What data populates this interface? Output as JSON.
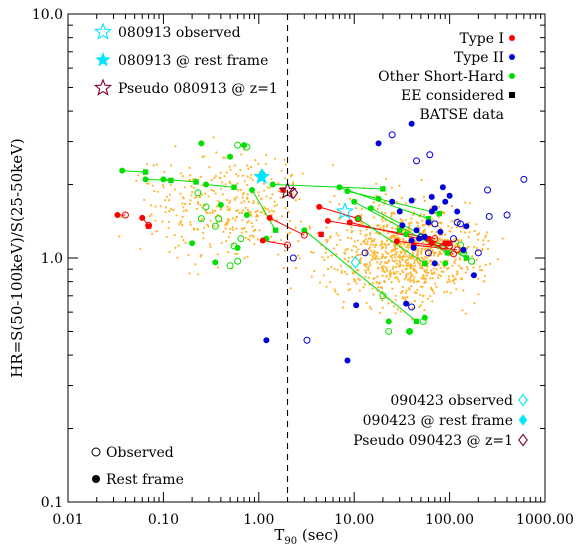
{
  "chart_data": {
    "type": "scatter",
    "xlabel_main": "T",
    "xlabel_sub": "90",
    "xlabel_unit": " (sec)",
    "ylabel": "HR=S(50-100keV)/S(25-50keV)",
    "xscale": "log",
    "yscale": "log",
    "xlim": [
      0.01,
      1000
    ],
    "ylim": [
      0.1,
      10
    ],
    "x_ticks": [
      {
        "value": 0.01,
        "label": "0.01"
      },
      {
        "value": 0.1,
        "label": "0.10"
      },
      {
        "value": 1,
        "label": "1.00"
      },
      {
        "value": 10,
        "label": "10.00"
      },
      {
        "value": 100,
        "label": "100.00"
      },
      {
        "value": 1000,
        "label": "1000.00"
      }
    ],
    "y_ticks": [
      {
        "value": 0.1,
        "label": "0.1"
      },
      {
        "value": 1,
        "label": "1.0"
      },
      {
        "value": 10,
        "label": "10.0"
      }
    ],
    "vline": {
      "x": 2,
      "style": "dashed"
    },
    "colors": {
      "type1": "#ff0000",
      "type2": "#0000dd",
      "other": "#00e000",
      "ee": "#000000",
      "batse": "#ffb62e",
      "obs_star": "#00e6ff",
      "pseudo": "#800030"
    },
    "legend_left": [
      {
        "label": "080913 observed",
        "marker": "open-star",
        "color": "#00e6ff"
      },
      {
        "label": "080913 @ rest frame",
        "marker": "filled-star",
        "color": "#00e6ff"
      },
      {
        "label": "Pseudo 080913 @ z=1",
        "marker": "open-star",
        "color": "#800030"
      }
    ],
    "legend_right": [
      {
        "label": "Type I",
        "marker": "filled-circle",
        "color": "#ff0000"
      },
      {
        "label": "Type II",
        "marker": "filled-circle",
        "color": "#0000dd"
      },
      {
        "label": "Other Short-Hard",
        "marker": "filled-circle",
        "color": "#00e000"
      },
      {
        "label": "EE considered",
        "marker": "filled-square",
        "color": "#000000"
      },
      {
        "label": "BATSE data",
        "marker": "open-circle",
        "color": "#0000dd"
      }
    ],
    "legend_bottom_right": [
      {
        "label": "090423 observed",
        "marker": "open-diamond",
        "color": "#00e6ff"
      },
      {
        "label": "090423 @ rest frame",
        "marker": "filled-diamond",
        "color": "#00e6ff"
      },
      {
        "label": "Pseudo 090423 @ z=1",
        "marker": "open-diamond",
        "color": "#800030"
      }
    ],
    "legend_bottom_left": [
      {
        "label": "Observed",
        "marker": "open-circle",
        "color": "#000000"
      },
      {
        "label": "Rest frame",
        "marker": "filled-circle",
        "color": "#000000"
      }
    ],
    "grb_080913": {
      "observed": [
        8,
        1.55
      ],
      "rest_frame": [
        1.07,
        2.15
      ],
      "pseudo_z1": [
        2,
        1.88
      ]
    },
    "grb_090423": {
      "observed": [
        10.3,
        0.96
      ],
      "rest_frame": [
        1.09,
        2.2
      ],
      "pseudo_z1": [
        2.3,
        1.85
      ]
    },
    "type1_pairs": [
      {
        "obs": [
          0.04,
          1.5
        ],
        "rest": [
          0.033,
          1.5
        ]
      },
      {
        "obs": [
          0.07,
          1.36
        ],
        "rest": [
          0.06,
          1.46
        ]
      },
      {
        "obs": [
          2.0,
          1.13
        ],
        "rest": [
          1.1,
          1.18
        ]
      },
      {
        "obs": [
          3.0,
          1.24
        ],
        "rest": [
          1.3,
          1.46
        ]
      },
      {
        "obs": [
          11,
          1.45
        ],
        "rest": [
          4.3,
          1.62
        ]
      },
      {
        "obs": [
          70,
          1.2
        ],
        "rest": [
          5.3,
          1.42
        ]
      },
      {
        "obs": [
          100,
          1.12
        ],
        "rest": [
          9,
          1.4
        ]
      },
      {
        "obs": [
          85,
          1.12
        ],
        "rest": [
          28,
          1.17
        ]
      },
      {
        "obs": [
          120,
          1.08
        ],
        "rest": [
          42,
          1.13
        ]
      },
      {
        "obs": [
          110,
          1.04
        ],
        "rest": [
          65,
          1.15
        ]
      }
    ],
    "other_pairs": [
      {
        "obs": [
          0.065,
          2.25
        ],
        "rest": [
          0.037,
          2.28
        ]
      },
      {
        "obs": [
          0.12,
          2.08
        ],
        "rest": [
          0.065,
          2.1
        ]
      },
      {
        "obs": [
          0.22,
          2.05
        ],
        "rest": [
          0.1,
          2.1
        ]
      },
      {
        "obs": [
          0.55,
          1.95
        ],
        "rest": [
          0.28,
          2.0
        ]
      },
      {
        "obs": [
          1.5,
          1.3
        ],
        "rest": [
          0.85,
          1.9
        ]
      },
      {
        "obs": [
          20,
          1.92
        ],
        "rest": [
          1.4,
          2.0
        ]
      },
      {
        "obs": [
          60,
          1.45
        ],
        "rest": [
          7,
          1.95
        ]
      },
      {
        "obs": [
          78,
          1.52
        ],
        "rest": [
          8.5,
          1.88
        ]
      },
      {
        "obs": [
          95,
          1.05
        ],
        "rest": [
          10,
          1.7
        ]
      },
      {
        "obs": [
          150,
          1.0
        ],
        "rest": [
          15,
          1.6
        ]
      },
      {
        "obs": [
          55,
          0.95
        ],
        "rest": [
          11,
          1.45
        ]
      },
      {
        "obs": [
          45,
          0.55
        ],
        "rest": [
          3,
          1.3
        ]
      }
    ],
    "type1_extra_obs": [
      [
        0.07,
        1.35
      ],
      [
        90,
        1.15
      ],
      [
        60,
        1.2
      ]
    ],
    "other_obs_only": [
      [
        0.6,
        2.9
      ],
      [
        0.75,
        2.85
      ],
      [
        0.28,
        1.62
      ],
      [
        0.23,
        1.85
      ],
      [
        0.38,
        1.45
      ],
      [
        0.55,
        1.12
      ],
      [
        0.35,
        1.35
      ],
      [
        0.65,
        1.2
      ],
      [
        0.6,
        0.97
      ],
      [
        0.25,
        1.45
      ],
      [
        0.5,
        0.93
      ],
      [
        20,
        0.7
      ],
      [
        23,
        0.5
      ],
      [
        38,
        0.5
      ],
      [
        53,
        0.55
      ],
      [
        170,
        0.97
      ],
      [
        130,
        1.13
      ],
      [
        140,
        1.05
      ]
    ],
    "other_rest_only": [
      [
        0.25,
        2.95
      ],
      [
        0.5,
        2.6
      ],
      [
        0.7,
        2.9
      ],
      [
        0.2,
        1.15
      ],
      [
        0.35,
        0.96
      ],
      [
        0.4,
        1.65
      ],
      [
        0.6,
        1.1
      ],
      [
        0.75,
        1.5
      ],
      [
        23,
        0.55
      ],
      [
        38,
        0.5
      ],
      [
        55,
        0.57
      ],
      [
        90,
        0.95
      ],
      [
        140,
        1.07
      ],
      [
        30,
        1.3
      ],
      [
        35,
        1.25
      ],
      [
        18,
        1.75
      ],
      [
        1.2,
        1.2
      ]
    ],
    "type2_obs": [
      [
        2.3,
        1.0
      ],
      [
        3.2,
        0.46
      ],
      [
        25,
        3.2
      ],
      [
        45,
        2.5
      ],
      [
        62,
        2.65
      ],
      [
        120,
        1.4
      ],
      [
        250,
        1.9
      ],
      [
        260,
        1.48
      ],
      [
        400,
        1.5
      ],
      [
        600,
        2.1
      ],
      [
        40,
        0.63
      ],
      [
        13,
        1.05
      ],
      [
        50,
        1.22
      ],
      [
        70,
        1.38
      ],
      [
        130,
        1.38
      ],
      [
        200,
        1.05
      ],
      [
        110,
        1.2
      ],
      [
        60,
        1.05
      ]
    ],
    "type2_rest": [
      [
        10.5,
        0.64
      ],
      [
        8.5,
        0.38
      ],
      [
        1.2,
        0.46
      ],
      [
        18,
        2.95
      ],
      [
        40,
        3.55
      ],
      [
        65,
        1.78
      ],
      [
        80,
        1.28
      ],
      [
        85,
        1.95
      ],
      [
        90,
        1.7
      ],
      [
        25,
        1.7
      ],
      [
        30,
        1.55
      ],
      [
        32,
        1.36
      ],
      [
        40,
        1.18
      ],
      [
        45,
        1.3
      ],
      [
        48,
        1.2
      ],
      [
        55,
        1.22
      ],
      [
        60,
        1.4
      ],
      [
        70,
        1.6
      ],
      [
        70,
        0.95
      ],
      [
        100,
        1.8
      ],
      [
        120,
        1.55
      ],
      [
        140,
        1.08
      ],
      [
        180,
        0.85
      ],
      [
        150,
        1.35
      ],
      [
        35,
        0.65
      ],
      [
        40,
        1.72
      ],
      [
        65,
        1.55
      ],
      [
        42,
        1.1
      ]
    ],
    "ee_squares_black": [
      [
        1.8,
        1.9
      ],
      [
        4.5,
        1.25
      ],
      [
        100,
        1.15
      ]
    ]
  }
}
